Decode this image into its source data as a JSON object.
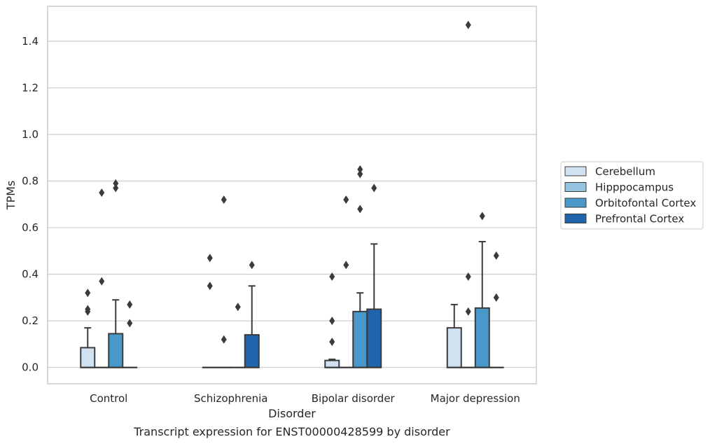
{
  "chart_data": {
    "type": "box",
    "caption": "Transcript expression for ENST00000428599 by disorder",
    "xlabel": "Disorder",
    "ylabel": "TPMs",
    "ylim": [
      -0.07,
      1.55
    ],
    "yticks": [
      0.0,
      0.2,
      0.4,
      0.6,
      0.8,
      1.0,
      1.2,
      1.4
    ],
    "ytick_labels": [
      "0.0",
      "0.2",
      "0.4",
      "0.6",
      "0.8",
      "1.0",
      "1.2",
      "1.4"
    ],
    "grid": true,
    "legend_position": "right",
    "categories": [
      "Control",
      "Schizophrenia",
      "Bipolar disorder",
      "Major depression"
    ],
    "series": [
      {
        "name": "Cerebellum",
        "color": "#d0e1f2",
        "boxes": [
          {
            "q1": 0,
            "median": 0,
            "q3": 0.085,
            "whisker_low": 0,
            "whisker_high": 0.17,
            "outliers": [
              0.24,
              0.25,
              0.32
            ]
          },
          {
            "q1": 0,
            "median": 0,
            "q3": 0,
            "whisker_low": 0,
            "whisker_high": 0,
            "outliers": [
              0.35,
              0.47
            ]
          },
          {
            "q1": 0,
            "median": 0,
            "q3": 0.03,
            "whisker_low": 0,
            "whisker_high": 0.035,
            "outliers": [
              0.11,
              0.2,
              0.39
            ]
          },
          {
            "q1": 0,
            "median": 0,
            "q3": 0.17,
            "whisker_low": 0,
            "whisker_high": 0.27,
            "outliers": []
          }
        ]
      },
      {
        "name": "Hipppocampus",
        "color": "#94c4df",
        "boxes": [
          {
            "q1": 0,
            "median": 0,
            "q3": 0,
            "whisker_low": 0,
            "whisker_high": 0,
            "outliers": [
              0.37,
              0.75
            ]
          },
          {
            "q1": 0,
            "median": 0,
            "q3": 0,
            "whisker_low": 0,
            "whisker_high": 0,
            "outliers": [
              0.12,
              0.72
            ]
          },
          {
            "q1": 0,
            "median": 0,
            "q3": 0,
            "whisker_low": 0,
            "whisker_high": 0,
            "outliers": [
              0.44,
              0.72
            ]
          },
          {
            "q1": 0,
            "median": 0,
            "q3": 0,
            "whisker_low": 0,
            "whisker_high": 0,
            "outliers": [
              0.24,
              0.39,
              1.47
            ]
          }
        ]
      },
      {
        "name": "Orbitofontal Cortex",
        "color": "#4a98c9",
        "boxes": [
          {
            "q1": 0,
            "median": 0,
            "q3": 0.145,
            "whisker_low": 0,
            "whisker_high": 0.29,
            "outliers": [
              0.77,
              0.79
            ]
          },
          {
            "q1": 0,
            "median": 0,
            "q3": 0,
            "whisker_low": 0,
            "whisker_high": 0,
            "outliers": [
              0.26
            ]
          },
          {
            "q1": 0,
            "median": 0,
            "q3": 0.24,
            "whisker_low": 0,
            "whisker_high": 0.32,
            "outliers": [
              0.68,
              0.83,
              0.85
            ]
          },
          {
            "q1": 0,
            "median": 0,
            "q3": 0.255,
            "whisker_low": 0,
            "whisker_high": 0.54,
            "outliers": [
              0.65
            ]
          }
        ]
      },
      {
        "name": "Prefrontal Cortex",
        "color": "#2164ab",
        "boxes": [
          {
            "q1": 0,
            "median": 0,
            "q3": 0,
            "whisker_low": 0,
            "whisker_high": 0,
            "outliers": [
              0.19,
              0.27
            ]
          },
          {
            "q1": 0,
            "median": 0,
            "q3": 0.14,
            "whisker_low": 0,
            "whisker_high": 0.35,
            "outliers": [
              0.44
            ]
          },
          {
            "q1": 0,
            "median": 0,
            "q3": 0.25,
            "whisker_low": 0,
            "whisker_high": 0.53,
            "outliers": [
              0.77
            ]
          },
          {
            "q1": 0,
            "median": 0,
            "q3": 0,
            "whisker_low": 0,
            "whisker_high": 0,
            "outliers": [
              0.3,
              0.48
            ]
          }
        ]
      }
    ]
  }
}
